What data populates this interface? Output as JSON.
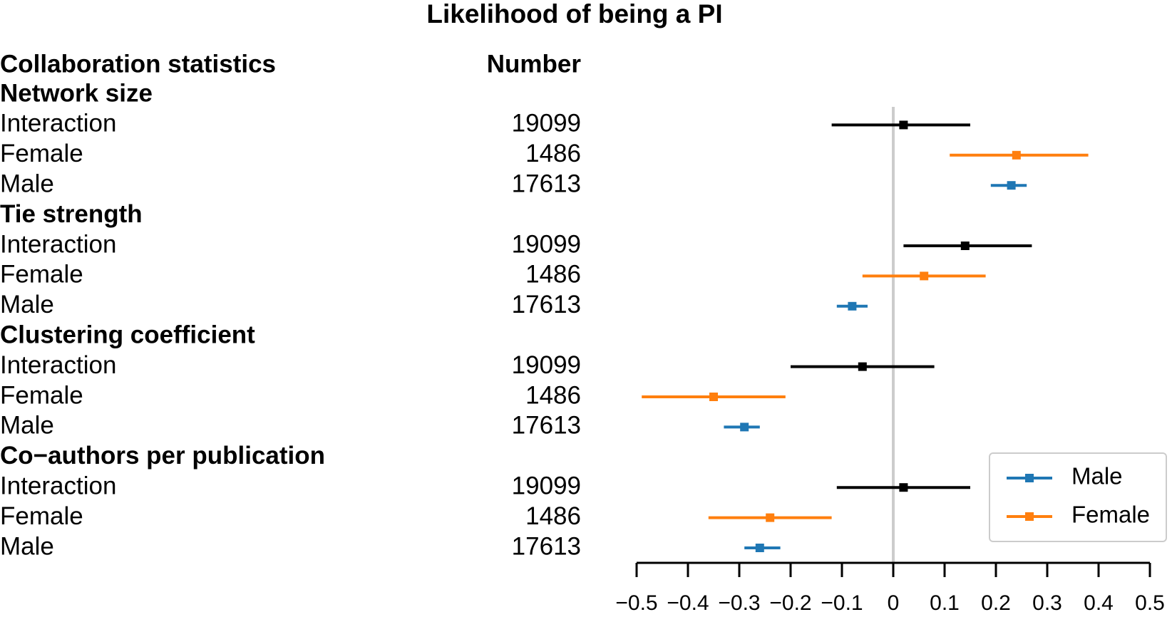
{
  "chart_data": {
    "type": "forest",
    "title": "Likelihood of being a PI",
    "columns": [
      "Collaboration statistics",
      "Number"
    ],
    "groups": [
      {
        "name": "Network size",
        "rows": [
          {
            "label": "Interaction",
            "number": 19099,
            "color": "#000000",
            "estimate": 0.02,
            "low": -0.12,
            "high": 0.15
          },
          {
            "label": "Female",
            "number": 1486,
            "color": "#ff7f0e",
            "estimate": 0.24,
            "low": 0.11,
            "high": 0.38
          },
          {
            "label": "Male",
            "number": 17613,
            "color": "#1f77b4",
            "estimate": 0.23,
            "low": 0.19,
            "high": 0.26
          }
        ]
      },
      {
        "name": "Tie strength",
        "rows": [
          {
            "label": "Interaction",
            "number": 19099,
            "color": "#000000",
            "estimate": 0.14,
            "low": 0.02,
            "high": 0.27
          },
          {
            "label": "Female",
            "number": 1486,
            "color": "#ff7f0e",
            "estimate": 0.06,
            "low": -0.06,
            "high": 0.18
          },
          {
            "label": "Male",
            "number": 17613,
            "color": "#1f77b4",
            "estimate": -0.08,
            "low": -0.11,
            "high": -0.05
          }
        ]
      },
      {
        "name": "Clustering coefficient",
        "rows": [
          {
            "label": "Interaction",
            "number": 19099,
            "color": "#000000",
            "estimate": -0.06,
            "low": -0.2,
            "high": 0.08
          },
          {
            "label": "Female",
            "number": 1486,
            "color": "#ff7f0e",
            "estimate": -0.35,
            "low": -0.49,
            "high": -0.21
          },
          {
            "label": "Male",
            "number": 17613,
            "color": "#1f77b4",
            "estimate": -0.29,
            "low": -0.33,
            "high": -0.26
          }
        ]
      },
      {
        "name": "Co−authors per publication",
        "rows": [
          {
            "label": "Interaction",
            "number": 19099,
            "color": "#000000",
            "estimate": 0.02,
            "low": -0.11,
            "high": 0.15
          },
          {
            "label": "Female",
            "number": 1486,
            "color": "#ff7f0e",
            "estimate": -0.24,
            "low": -0.36,
            "high": -0.12
          },
          {
            "label": "Male",
            "number": 17613,
            "color": "#1f77b4",
            "estimate": -0.26,
            "low": -0.29,
            "high": -0.22
          }
        ]
      }
    ],
    "series": [
      {
        "name": "Male",
        "color": "#1f77b4"
      },
      {
        "name": "Female",
        "color": "#ff7f0e"
      }
    ],
    "reference_line": 0,
    "xlim": [
      -0.5,
      0.5
    ],
    "xticks": [
      {
        "value": -0.5,
        "label": "−0.5"
      },
      {
        "value": -0.4,
        "label": "−0.4"
      },
      {
        "value": -0.3,
        "label": "−0.3"
      },
      {
        "value": -0.2,
        "label": "−0.2"
      },
      {
        "value": -0.1,
        "label": "−0.1"
      },
      0,
      0.1,
      0.2,
      0.3,
      0.4,
      0.5
    ],
    "legend": "lower right"
  }
}
